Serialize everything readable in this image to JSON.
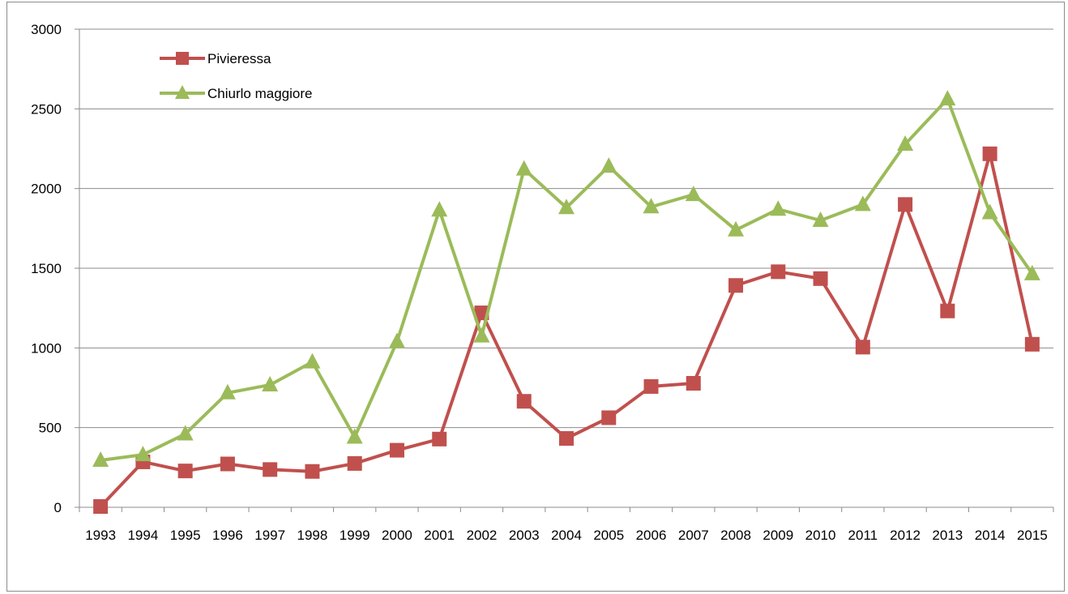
{
  "chart_data": {
    "type": "line",
    "title": "",
    "xlabel": "",
    "ylabel": "",
    "categories": [
      "1993",
      "1994",
      "1995",
      "1996",
      "1997",
      "1998",
      "1999",
      "2000",
      "2001",
      "2002",
      "2003",
      "2004",
      "2005",
      "2006",
      "2007",
      "2008",
      "2009",
      "2010",
      "2011",
      "2012",
      "2013",
      "2014",
      "2015"
    ],
    "ylim": [
      0,
      3000
    ],
    "yticks": [
      0,
      500,
      1000,
      1500,
      2000,
      2500,
      3000
    ],
    "grid": "horizontal",
    "legend_position": "top-left",
    "series": [
      {
        "name": "Pivieressa",
        "color": "#c0504d",
        "marker": "square",
        "values": [
          5,
          285,
          228,
          272,
          237,
          225,
          275,
          358,
          428,
          1220,
          665,
          432,
          562,
          758,
          778,
          1392,
          1478,
          1435,
          1005,
          1900,
          1232,
          2218,
          1023
        ]
      },
      {
        "name": "Chiurlo maggiore",
        "color": "#9bbb59",
        "marker": "triangle",
        "values": [
          295,
          330,
          460,
          718,
          768,
          912,
          440,
          1040,
          1865,
          1075,
          2122,
          1880,
          2140,
          1885,
          1962,
          1740,
          1870,
          1800,
          1900,
          2278,
          2562,
          1848,
          1465
        ]
      }
    ]
  }
}
